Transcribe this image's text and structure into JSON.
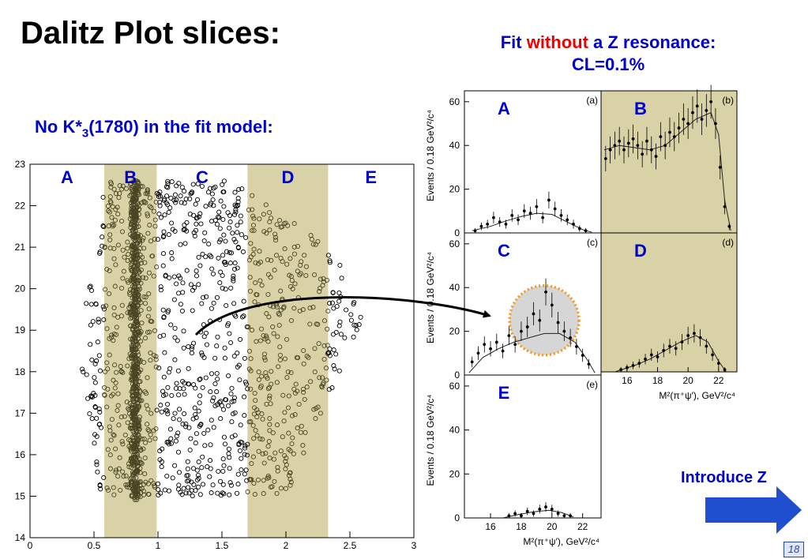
{
  "slide": {
    "title": "Dalitz Plot slices:",
    "fit_title_part1": "Fit ",
    "fit_title_emph": "without",
    "fit_title_part2": " a Z resonance:",
    "fit_title_line2": "CL=0.1%",
    "model_note_prefix": "No K*",
    "model_note_sub": "3",
    "model_note_suffix": "(1780) in the fit model:",
    "intro_label": "Introduce Z",
    "page_number": "18"
  },
  "colors": {
    "title_blue": "#0000cc",
    "emphasis_red": "#ee0000",
    "band_fill": "#d9d2a6",
    "band_points": "#4a4424",
    "circle_orange": "#f39a1e",
    "arrow_blue": "#1f4fcf"
  },
  "chart_data": [
    {
      "type": "scatter",
      "x_ticks": [
        "0",
        "0.5",
        "1",
        "1.5",
        "2",
        "2.5",
        "3"
      ],
      "y_ticks": [
        "14",
        "15",
        "16",
        "17",
        "18",
        "19",
        "20",
        "21",
        "22",
        "23"
      ],
      "xlim": [
        0,
        3
      ],
      "ylim": [
        14,
        23
      ],
      "slice_bands": [
        {
          "label": "A",
          "range": [
            0.0,
            0.58
          ],
          "shaded": false
        },
        {
          "label": "B",
          "range": [
            0.58,
            0.99
          ],
          "shaded": true
        },
        {
          "label": "C",
          "range": [
            0.99,
            1.7
          ],
          "shaded": false
        },
        {
          "label": "D",
          "range": [
            1.7,
            2.33
          ],
          "shaded": true
        },
        {
          "label": "E",
          "range": [
            2.33,
            3.0
          ],
          "shaded": false
        }
      ]
    },
    {
      "type": "histogram-grid",
      "y_axis_label": "Events / 0.18 GeV²/c⁴",
      "x_axis_label": "M²(π⁺ψ′), GeV²/c⁴",
      "x_ticks": [
        "16",
        "18",
        "20",
        "22"
      ],
      "y_ticks": [
        "0",
        "20",
        "40",
        "60"
      ],
      "xlim": [
        14.3,
        23.2
      ],
      "ylim": [
        0,
        65
      ],
      "panels": [
        {
          "tag": "(a)",
          "slice": "A",
          "shaded": false,
          "x": [
            15.0,
            15.4,
            15.8,
            16.2,
            16.6,
            17.0,
            17.4,
            17.8,
            18.2,
            18.6,
            19.0,
            19.4,
            19.8,
            20.2,
            20.6,
            21.0,
            21.4,
            21.8,
            22.2
          ],
          "y": [
            1,
            3,
            4,
            7,
            5,
            4,
            8,
            6,
            10,
            9,
            12,
            7,
            15,
            11,
            8,
            6,
            4,
            2,
            1
          ],
          "fit": [
            [
              14.8,
              1
            ],
            [
              16,
              3
            ],
            [
              17,
              5.5
            ],
            [
              18,
              7.5
            ],
            [
              19,
              9
            ],
            [
              20,
              8.5
            ],
            [
              21,
              5
            ],
            [
              22,
              1.5
            ],
            [
              22.6,
              0.3
            ]
          ]
        },
        {
          "tag": "(b)",
          "slice": "B",
          "shaded": true,
          "x": [
            14.6,
            14.9,
            15.2,
            15.5,
            15.8,
            16.1,
            16.4,
            16.7,
            17.0,
            17.3,
            17.6,
            17.9,
            18.2,
            18.5,
            18.8,
            19.1,
            19.4,
            19.7,
            20.0,
            20.3,
            20.6,
            20.9,
            21.2,
            21.5,
            21.8,
            22.1,
            22.4,
            22.7
          ],
          "y": [
            34,
            38,
            40,
            42,
            38,
            41,
            43,
            40,
            36,
            42,
            38,
            35,
            44,
            40,
            46,
            44,
            48,
            52,
            50,
            55,
            58,
            52,
            56,
            60,
            50,
            30,
            12,
            3
          ],
          "fit": [
            [
              14.5,
              38
            ],
            [
              15.5,
              40
            ],
            [
              16.5,
              39
            ],
            [
              17.5,
              38
            ],
            [
              18.5,
              40
            ],
            [
              19.5,
              46
            ],
            [
              20.5,
              52
            ],
            [
              21.5,
              55
            ],
            [
              22.0,
              45
            ],
            [
              22.4,
              15
            ],
            [
              22.8,
              1
            ]
          ]
        },
        {
          "tag": "(c)",
          "slice": "C",
          "shaded": false,
          "x": [
            14.8,
            15.2,
            15.6,
            16.0,
            16.4,
            16.8,
            17.2,
            17.6,
            18.0,
            18.4,
            18.8,
            19.2,
            19.6,
            20.0,
            20.4,
            20.8,
            21.2,
            21.6,
            22.0,
            22.4
          ],
          "y": [
            6,
            10,
            14,
            12,
            15,
            11,
            18,
            14,
            20,
            22,
            28,
            25,
            38,
            32,
            24,
            20,
            17,
            13,
            9,
            5
          ],
          "fit": [
            [
              14.6,
              1
            ],
            [
              15.5,
              8
            ],
            [
              16.5,
              12
            ],
            [
              17.5,
              15
            ],
            [
              18.5,
              17
            ],
            [
              19.5,
              19
            ],
            [
              20.5,
              19
            ],
            [
              21.5,
              15
            ],
            [
              22.3,
              7
            ],
            [
              22.8,
              1
            ]
          ]
        },
        {
          "tag": "(d)",
          "slice": "D",
          "shaded": true,
          "x": [
            15.6,
            16.0,
            16.4,
            16.8,
            17.2,
            17.6,
            18.0,
            18.4,
            18.8,
            19.2,
            19.6,
            20.0,
            20.4,
            20.8,
            21.2,
            21.6,
            22.0,
            22.4
          ],
          "y": [
            1,
            2,
            3,
            4,
            6,
            8,
            7,
            10,
            12,
            11,
            14,
            17,
            18,
            16,
            12,
            8,
            4,
            1
          ],
          "fit": [
            [
              15.2,
              0
            ],
            [
              16.5,
              3
            ],
            [
              17.5,
              6
            ],
            [
              18.5,
              10
            ],
            [
              19.5,
              14
            ],
            [
              20.5,
              17
            ],
            [
              21.3,
              14
            ],
            [
              22.0,
              5
            ],
            [
              22.5,
              0
            ]
          ]
        },
        {
          "tag": "(e)",
          "slice": "E",
          "shaded": false,
          "x": [
            17.2,
            17.6,
            18.0,
            18.4,
            18.8,
            19.2,
            19.6,
            20.0,
            20.4,
            20.8,
            21.2
          ],
          "y": [
            1,
            2,
            1,
            3,
            2,
            4,
            5,
            4,
            2,
            1,
            1
          ],
          "fit": [
            [
              16.8,
              0
            ],
            [
              17.8,
              1.5
            ],
            [
              18.8,
              2.8
            ],
            [
              19.8,
              3.5
            ],
            [
              20.6,
              2.5
            ],
            [
              21.4,
              0.5
            ]
          ]
        }
      ]
    }
  ]
}
